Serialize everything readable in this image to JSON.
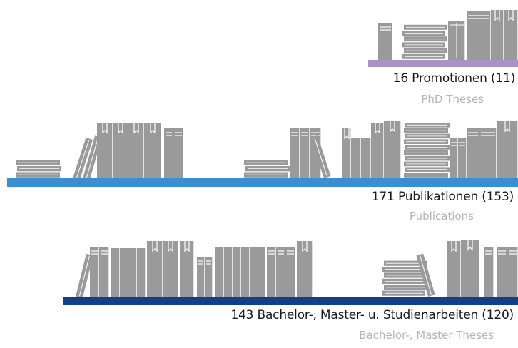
{
  "colors": {
    "book": "#9a9a9a",
    "book_line": "#ffffff",
    "shelf_phd": "#a992c6",
    "shelf_pub": "#3a8fd3",
    "shelf_ba": "#123f86"
  },
  "shelves": {
    "phd": {
      "count_label": "16 Promotionen (11)",
      "sub_label": "PhD Theses",
      "count": 16,
      "count_prev": 11
    },
    "publications": {
      "count_label": "171 Publikationen (153)",
      "sub_label": "Publications",
      "count": 171,
      "count_prev": 153
    },
    "theses": {
      "count_label": "143 Bachelor-, Master- u. Studienarbeiten (120)",
      "sub_label": "Bachelor-, Master Theses",
      "count": 143,
      "count_prev": 120
    }
  }
}
